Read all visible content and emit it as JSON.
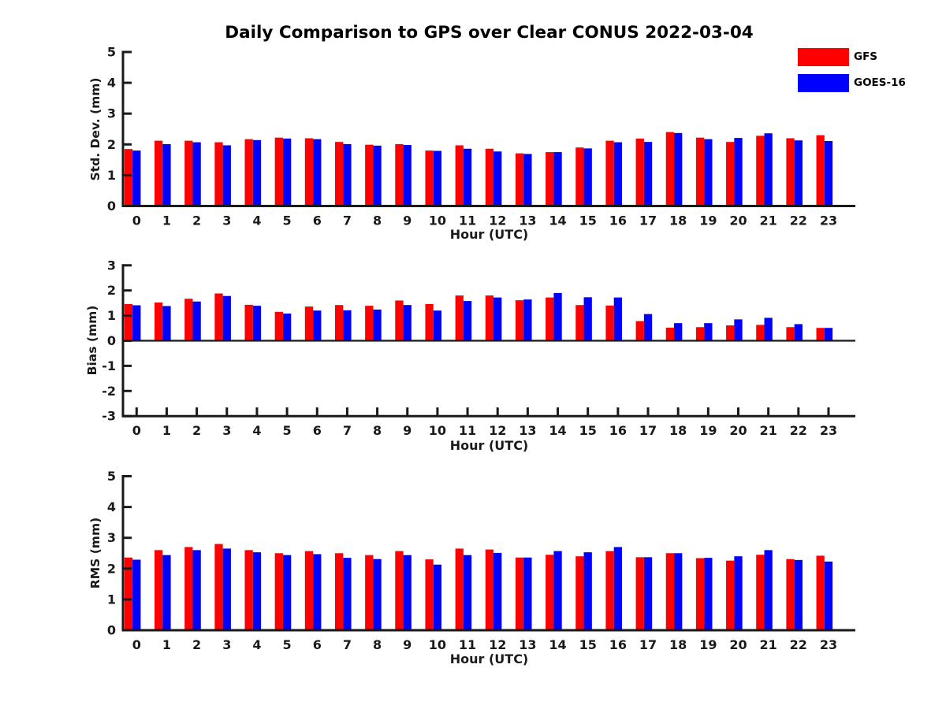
{
  "title": "Daily Comparison to GPS over Clear CONUS 2022-03-04",
  "legend": {
    "items": [
      {
        "label": "GFS",
        "color": "#ff0000"
      },
      {
        "label": "GOES-16",
        "color": "#0000ff"
      }
    ]
  },
  "colors": {
    "gfs": "#ff0000",
    "goes16": "#0000ff",
    "axis": "#1a1a1a",
    "zero_line": "#1a1a1a"
  },
  "chart_data": [
    {
      "type": "bar",
      "title": "",
      "ylabel": "Std. Dev. (mm)",
      "xlabel": "Hour (UTC)",
      "categories": [
        "0",
        "1",
        "2",
        "3",
        "4",
        "5",
        "6",
        "7",
        "8",
        "9",
        "10",
        "11",
        "12",
        "13",
        "14",
        "15",
        "16",
        "17",
        "18",
        "19",
        "20",
        "21",
        "22",
        "23"
      ],
      "series": [
        {
          "name": "GFS",
          "color": "#ff0000",
          "values": [
            1.85,
            2.12,
            2.12,
            2.07,
            2.17,
            2.22,
            2.2,
            2.08,
            1.99,
            2.01,
            1.8,
            1.97,
            1.86,
            1.71,
            1.75,
            1.9,
            2.12,
            2.19,
            2.4,
            2.22,
            2.08,
            2.28,
            2.2,
            2.3
          ]
        },
        {
          "name": "GOES-16",
          "color": "#0000ff",
          "values": [
            1.8,
            2.01,
            2.07,
            1.97,
            2.14,
            2.19,
            2.17,
            2.01,
            1.96,
            1.98,
            1.79,
            1.86,
            1.77,
            1.69,
            1.75,
            1.87,
            2.07,
            2.08,
            2.37,
            2.17,
            2.21,
            2.36,
            2.13,
            2.11
          ]
        }
      ],
      "ylim": [
        0,
        5
      ],
      "yticks": [
        0,
        1,
        2,
        3,
        4,
        5
      ],
      "grid": false,
      "legend_position": "upper-right-outside"
    },
    {
      "type": "bar",
      "title": "",
      "ylabel": "Bias (mm)",
      "xlabel": "Hour (UTC)",
      "categories": [
        "0",
        "1",
        "2",
        "3",
        "4",
        "5",
        "6",
        "7",
        "8",
        "9",
        "10",
        "11",
        "12",
        "13",
        "14",
        "15",
        "16",
        "17",
        "18",
        "19",
        "20",
        "21",
        "22",
        "23"
      ],
      "series": [
        {
          "name": "GFS",
          "color": "#ff0000",
          "values": [
            1.46,
            1.52,
            1.67,
            1.88,
            1.43,
            1.15,
            1.36,
            1.42,
            1.39,
            1.6,
            1.46,
            1.8,
            1.8,
            1.61,
            1.72,
            1.42,
            1.4,
            0.78,
            0.52,
            0.54,
            0.61,
            0.63,
            0.54,
            0.51
          ]
        },
        {
          "name": "GOES-16",
          "color": "#0000ff",
          "values": [
            1.41,
            1.38,
            1.56,
            1.78,
            1.39,
            1.08,
            1.2,
            1.21,
            1.24,
            1.42,
            1.2,
            1.58,
            1.72,
            1.64,
            1.9,
            1.73,
            1.72,
            1.06,
            0.7,
            0.7,
            0.85,
            0.91,
            0.66,
            0.51
          ]
        }
      ],
      "ylim": [
        -3,
        3
      ],
      "yticks": [
        -3,
        -2,
        -1,
        0,
        1,
        2,
        3
      ],
      "grid": false,
      "zero_line": true
    },
    {
      "type": "bar",
      "title": "",
      "ylabel": "RMS (mm)",
      "xlabel": "Hour (UTC)",
      "categories": [
        "0",
        "1",
        "2",
        "3",
        "4",
        "5",
        "6",
        "7",
        "8",
        "9",
        "10",
        "11",
        "12",
        "13",
        "14",
        "15",
        "16",
        "17",
        "18",
        "19",
        "20",
        "21",
        "22",
        "23"
      ],
      "series": [
        {
          "name": "GFS",
          "color": "#ff0000",
          "values": [
            2.36,
            2.6,
            2.7,
            2.8,
            2.6,
            2.5,
            2.57,
            2.5,
            2.44,
            2.57,
            2.3,
            2.65,
            2.62,
            2.36,
            2.45,
            2.4,
            2.57,
            2.37,
            2.5,
            2.34,
            2.26,
            2.45,
            2.31,
            2.42
          ]
        },
        {
          "name": "GOES-16",
          "color": "#0000ff",
          "values": [
            2.29,
            2.44,
            2.6,
            2.65,
            2.53,
            2.44,
            2.47,
            2.35,
            2.31,
            2.44,
            2.13,
            2.44,
            2.51,
            2.36,
            2.57,
            2.53,
            2.7,
            2.37,
            2.5,
            2.35,
            2.4,
            2.6,
            2.28,
            2.23
          ]
        }
      ],
      "ylim": [
        0,
        5
      ],
      "yticks": [
        0,
        1,
        2,
        3,
        4,
        5
      ],
      "grid": false
    }
  ]
}
